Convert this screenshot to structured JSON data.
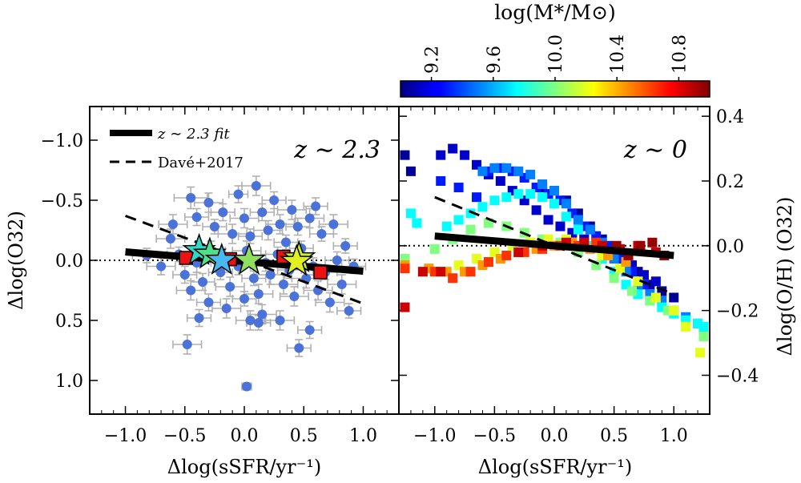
{
  "chart_data": [
    {
      "type": "scatter",
      "panel": "left",
      "annotation": "z ∼ 2.3",
      "xlabel": "Δlog(sSFR/yr⁻¹)",
      "ylabel": "Δlog(O32)",
      "xlim": [
        -1.3,
        1.3
      ],
      "ylim": [
        1.28,
        -1.28
      ],
      "y_inverted": true,
      "x_ticks": [
        "−1.0",
        "−0.5",
        "0.0",
        "0.5",
        "1.0"
      ],
      "x_tick_values": [
        -1.0,
        -0.5,
        0.0,
        0.5,
        1.0
      ],
      "y_ticks": [
        "−1.0",
        "−0.5",
        "0.0",
        "0.5",
        "1.0"
      ],
      "y_tick_values": [
        -1.0,
        -0.5,
        0.0,
        0.5,
        1.0
      ],
      "legend": [
        {
          "label": "z ∼ 2.3 fit",
          "style": "solid-thick"
        },
        {
          "label": "Davé+2017",
          "style": "dashed"
        }
      ],
      "reference_line": {
        "y": 0.0,
        "style": "dotted"
      },
      "fit_line": {
        "x": [
          -1.0,
          1.0
        ],
        "y": [
          -0.07,
          0.09
        ]
      },
      "dave_line": {
        "x": [
          -1.0,
          1.0
        ],
        "y": [
          -0.37,
          0.36
        ]
      },
      "points_color": "#4a72d8",
      "errorbar_color": "#b0b0b0",
      "points": [
        {
          "x": -0.45,
          "y": -0.52,
          "xe": 0.14,
          "ye": 0.09
        },
        {
          "x": -0.4,
          "y": -0.36,
          "xe": 0.1,
          "ye": 0.07
        },
        {
          "x": -0.3,
          "y": -0.48,
          "xe": 0.12,
          "ye": 0.08
        },
        {
          "x": -0.25,
          "y": -0.28,
          "xe": 0.1,
          "ye": 0.06
        },
        {
          "x": -0.18,
          "y": -0.4,
          "xe": 0.1,
          "ye": 0.07
        },
        {
          "x": -0.1,
          "y": -0.22,
          "xe": 0.12,
          "ye": 0.08
        },
        {
          "x": -0.05,
          "y": -0.55,
          "xe": 0.08,
          "ye": 0.07
        },
        {
          "x": 0.0,
          "y": -0.35,
          "xe": 0.12,
          "ye": 0.08
        },
        {
          "x": 0.05,
          "y": -0.2,
          "xe": 0.1,
          "ye": 0.06
        },
        {
          "x": 0.1,
          "y": -0.62,
          "xe": 0.12,
          "ye": 0.08
        },
        {
          "x": 0.15,
          "y": -0.4,
          "xe": 0.1,
          "ye": 0.07
        },
        {
          "x": 0.2,
          "y": -0.25,
          "xe": 0.12,
          "ye": 0.08
        },
        {
          "x": 0.25,
          "y": -0.5,
          "xe": 0.1,
          "ye": 0.07
        },
        {
          "x": 0.3,
          "y": -0.3,
          "xe": 0.12,
          "ye": 0.08
        },
        {
          "x": 0.35,
          "y": -0.15,
          "xe": 0.1,
          "ye": 0.06
        },
        {
          "x": 0.4,
          "y": -0.42,
          "xe": 0.12,
          "ye": 0.08
        },
        {
          "x": 0.45,
          "y": -0.28,
          "xe": 0.1,
          "ye": 0.07
        },
        {
          "x": 0.55,
          "y": -0.35,
          "xe": 0.12,
          "ye": 0.08
        },
        {
          "x": 0.65,
          "y": -0.22,
          "xe": 0.1,
          "ye": 0.06
        },
        {
          "x": 0.75,
          "y": -0.3,
          "xe": 0.12,
          "ye": 0.08
        },
        {
          "x": 0.85,
          "y": -0.12,
          "xe": 0.1,
          "ye": 0.06
        },
        {
          "x": -0.62,
          "y": -0.18,
          "xe": 0.12,
          "ye": 0.08
        },
        {
          "x": -0.55,
          "y": -0.05,
          "xe": 0.1,
          "ye": 0.06
        },
        {
          "x": -0.7,
          "y": 0.05,
          "xe": 0.12,
          "ye": 0.07
        },
        {
          "x": -0.5,
          "y": 0.12,
          "xe": 0.1,
          "ye": 0.07
        },
        {
          "x": -0.4,
          "y": 0.02,
          "xe": 0.12,
          "ye": 0.08
        },
        {
          "x": -0.35,
          "y": 0.18,
          "xe": 0.1,
          "ye": 0.07
        },
        {
          "x": -0.28,
          "y": -0.08,
          "xe": 0.12,
          "ye": 0.08
        },
        {
          "x": -0.2,
          "y": 0.1,
          "xe": 0.1,
          "ye": 0.06
        },
        {
          "x": -0.12,
          "y": 0.22,
          "xe": 0.12,
          "ye": 0.08
        },
        {
          "x": -0.05,
          "y": 0.05,
          "xe": 0.1,
          "ye": 0.07
        },
        {
          "x": 0.02,
          "y": -0.08,
          "xe": 0.12,
          "ye": 0.08
        },
        {
          "x": 0.08,
          "y": 0.15,
          "xe": 0.1,
          "ye": 0.06
        },
        {
          "x": 0.12,
          "y": 0.28,
          "xe": 0.12,
          "ye": 0.08
        },
        {
          "x": 0.18,
          "y": 0.02,
          "xe": 0.1,
          "ye": 0.07
        },
        {
          "x": 0.22,
          "y": 0.12,
          "xe": 0.12,
          "ye": 0.08
        },
        {
          "x": 0.28,
          "y": -0.05,
          "xe": 0.1,
          "ye": 0.06
        },
        {
          "x": 0.33,
          "y": 0.2,
          "xe": 0.12,
          "ye": 0.08
        },
        {
          "x": 0.38,
          "y": 0.08,
          "xe": 0.1,
          "ye": 0.07
        },
        {
          "x": 0.42,
          "y": 0.3,
          "xe": 0.12,
          "ye": 0.08
        },
        {
          "x": 0.48,
          "y": -0.1,
          "xe": 0.1,
          "ye": 0.06
        },
        {
          "x": 0.52,
          "y": 0.15,
          "xe": 0.12,
          "ye": 0.08
        },
        {
          "x": 0.58,
          "y": 0.05,
          "xe": 0.1,
          "ye": 0.07
        },
        {
          "x": 0.62,
          "y": 0.25,
          "xe": 0.12,
          "ye": 0.08
        },
        {
          "x": 0.68,
          "y": 0.1,
          "xe": 0.1,
          "ye": 0.06
        },
        {
          "x": 0.72,
          "y": 0.35,
          "xe": 0.12,
          "ye": 0.08
        },
        {
          "x": 0.78,
          "y": 0.0,
          "xe": 0.1,
          "ye": 0.07
        },
        {
          "x": 0.82,
          "y": 0.2,
          "xe": 0.12,
          "ye": 0.08
        },
        {
          "x": 0.88,
          "y": 0.42,
          "xe": 0.1,
          "ye": 0.06
        },
        {
          "x": -0.45,
          "y": 0.25,
          "xe": 0.12,
          "ye": 0.08
        },
        {
          "x": -0.3,
          "y": 0.35,
          "xe": 0.1,
          "ye": 0.07
        },
        {
          "x": -0.15,
          "y": 0.4,
          "xe": 0.12,
          "ye": 0.08
        },
        {
          "x": 0.0,
          "y": 0.32,
          "xe": 0.1,
          "ye": 0.06
        },
        {
          "x": 0.15,
          "y": 0.45,
          "xe": 0.12,
          "ye": 0.08
        },
        {
          "x": -0.38,
          "y": 0.48,
          "xe": 0.1,
          "ye": 0.07
        },
        {
          "x": 0.05,
          "y": 0.5,
          "xe": 0.12,
          "ye": 0.08
        },
        {
          "x": 0.12,
          "y": 0.52,
          "xe": 0.1,
          "ye": 0.06
        },
        {
          "x": 0.3,
          "y": 0.5,
          "xe": 0.12,
          "ye": 0.08
        },
        {
          "x": 0.55,
          "y": 0.58,
          "xe": 0.1,
          "ye": 0.07
        },
        {
          "x": -0.82,
          "y": -0.04,
          "xe": 0.12,
          "ye": 0.06
        },
        {
          "x": -0.48,
          "y": 0.7,
          "xe": 0.12,
          "ye": 0.08
        },
        {
          "x": 0.46,
          "y": 0.73,
          "xe": 0.1,
          "ye": 0.07
        },
        {
          "x": 0.02,
          "y": 1.05,
          "xe": 0.04,
          "ye": 0.03
        },
        {
          "x": 0.92,
          "y": 0.05,
          "xe": 0.1,
          "ye": 0.06
        },
        {
          "x": -0.6,
          "y": -0.3,
          "xe": 0.12,
          "ye": 0.08
        },
        {
          "x": 0.6,
          "y": -0.45,
          "xe": 0.1,
          "ye": 0.07
        }
      ],
      "red_squares": [
        {
          "x": -0.49,
          "y": -0.02
        },
        {
          "x": -0.12,
          "y": -0.01
        },
        {
          "x": 0.33,
          "y": -0.03
        },
        {
          "x": 0.64,
          "y": 0.1
        }
      ],
      "stars": [
        {
          "x": -0.38,
          "y": -0.08,
          "color": "#30d8c8"
        },
        {
          "x": -0.29,
          "y": -0.05,
          "color": "#4fe08a"
        },
        {
          "x": -0.19,
          "y": 0.0,
          "color": "#48b8f0"
        },
        {
          "x": 0.04,
          "y": 0.0,
          "color": "#90e060"
        },
        {
          "x": 0.46,
          "y": -0.02,
          "color": "#c8f030"
        },
        {
          "x": 0.44,
          "y": 0.01,
          "color": "#e0f020"
        }
      ]
    },
    {
      "type": "scatter",
      "panel": "right",
      "annotation": "z ∼ 0",
      "xlabel": "Δlog(sSFR/yr⁻¹)",
      "ylabel": "Δlog(O/H) (O32)",
      "xlim": [
        -1.3,
        1.3
      ],
      "ylim": [
        -0.52,
        0.43
      ],
      "x_ticks": [
        "−1.0",
        "−0.5",
        "0.0",
        "0.5",
        "1.0"
      ],
      "x_tick_values": [
        -1.0,
        -0.5,
        0.0,
        0.5,
        1.0
      ],
      "y_ticks": [
        "−0.4",
        "−0.2",
        "0.0",
        "0.2",
        "0.4"
      ],
      "y_tick_values": [
        -0.4,
        -0.2,
        0.0,
        0.2,
        0.4
      ],
      "reference_line": {
        "y": 0.0,
        "style": "dotted"
      },
      "fit_line": {
        "x": [
          -1.0,
          1.0
        ],
        "y": [
          0.03,
          -0.03
        ]
      },
      "dave_line": {
        "x": [
          -1.0,
          1.0
        ],
        "y": [
          0.15,
          -0.15
        ]
      },
      "colorbar": {
        "label": "log(M*/M⊙)",
        "range": [
          9.0,
          11.0
        ],
        "ticks": [
          "9.2",
          "9.6",
          "10.0",
          "10.4",
          "10.8"
        ],
        "tick_values": [
          9.2,
          9.6,
          10.0,
          10.4,
          10.8
        ]
      },
      "mass_bins": [
        {
          "mass": 9.05,
          "x": [
            -1.25,
            -1.2,
            -0.1,
            0.0,
            0.1,
            0.2,
            0.3,
            0.4,
            0.5,
            0.6,
            0.7,
            0.8,
            0.9,
            1.0
          ],
          "y": [
            0.28,
            0.23,
            0.18,
            0.17,
            0.14,
            0.1,
            0.06,
            0.02,
            -0.02,
            -0.05,
            -0.08,
            -0.12,
            -0.14,
            -0.16
          ]
        },
        {
          "mass": 9.15,
          "x": [
            -0.95,
            -0.85,
            -0.75,
            -0.65,
            -0.55,
            -0.45,
            -0.35,
            -0.25,
            -0.15,
            -0.05,
            0.05,
            0.15,
            0.25,
            0.35,
            0.45,
            0.55,
            0.65,
            0.75,
            0.85
          ],
          "y": [
            0.28,
            0.3,
            0.28,
            0.25,
            0.22,
            0.2,
            0.17,
            0.14,
            0.11,
            0.08,
            0.06,
            0.04,
            0.02,
            0.0,
            -0.02,
            -0.04,
            -0.06,
            -0.09,
            -0.11
          ]
        },
        {
          "mass": 9.3,
          "x": [
            -0.95,
            -0.8,
            -0.65,
            -0.55,
            -0.45,
            -0.35,
            -0.25,
            -0.15,
            -0.05,
            0.05,
            0.15,
            0.25,
            0.35,
            0.45,
            0.55,
            0.65,
            0.75
          ],
          "y": [
            0.2,
            0.18,
            0.15,
            0.23,
            0.24,
            0.23,
            0.21,
            0.18,
            0.16,
            0.14,
            0.1,
            0.06,
            0.03,
            0.0,
            -0.04,
            -0.08,
            -0.12
          ]
        },
        {
          "mass": 9.5,
          "x": [
            -0.6,
            -0.5,
            -0.4,
            -0.3,
            -0.2,
            -0.1,
            0.0,
            0.1,
            0.2,
            0.3,
            0.4,
            0.5,
            0.6,
            0.7,
            0.8,
            0.9,
            1.0,
            1.1,
            1.2,
            1.25
          ],
          "y": [
            0.23,
            0.24,
            0.24,
            0.23,
            0.22,
            0.19,
            0.17,
            0.13,
            0.08,
            0.05,
            0.01,
            -0.04,
            -0.08,
            -0.12,
            -0.15,
            -0.17,
            -0.2,
            -0.22,
            -0.24,
            -0.25
          ]
        },
        {
          "mass": 9.75,
          "x": [
            -1.2,
            -1.15,
            -0.9,
            -0.8,
            -0.7,
            -0.6,
            -0.5,
            -0.4,
            -0.3,
            -0.2,
            -0.1,
            0.0,
            0.1,
            0.2,
            0.3,
            0.4,
            0.5,
            0.6,
            0.7,
            0.8,
            0.9,
            1.0,
            1.1,
            1.2,
            1.25
          ],
          "y": [
            0.1,
            0.07,
            0.06,
            0.08,
            0.1,
            0.12,
            0.14,
            0.15,
            0.16,
            0.16,
            0.15,
            0.13,
            0.09,
            0.05,
            0.0,
            -0.04,
            -0.08,
            -0.12,
            -0.15,
            -0.17,
            -0.19,
            -0.21,
            -0.23,
            -0.24,
            -0.25
          ]
        },
        {
          "mass": 10.0,
          "x": [
            -1.25,
            -1.0,
            -0.85,
            -0.7,
            -0.55,
            -0.4,
            -0.25,
            -0.1,
            0.05,
            0.2,
            0.35,
            0.5,
            0.65,
            0.8,
            0.95,
            1.1,
            1.25
          ],
          "y": [
            -0.04,
            -0.01,
            0.02,
            0.05,
            0.07,
            0.06,
            0.04,
            0.02,
            0.01,
            -0.02,
            -0.06,
            -0.1,
            -0.14,
            -0.17,
            -0.2,
            -0.25,
            -0.28
          ]
        },
        {
          "mass": 10.2,
          "x": [
            -0.8,
            -0.65,
            -0.5,
            -0.35,
            -0.2,
            -0.05,
            0.1,
            0.25,
            0.4,
            0.55,
            0.7,
            0.85,
            1.0,
            1.1,
            1.22
          ],
          "y": [
            -0.06,
            -0.04,
            -0.02,
            0.0,
            0.01,
            0.02,
            0.02,
            0.0,
            -0.03,
            -0.07,
            -0.11,
            -0.16,
            -0.2,
            -0.25,
            -0.33
          ]
        },
        {
          "mass": 10.45,
          "x": [
            -1.25,
            -1.05,
            -0.9,
            -0.75,
            -0.6,
            -0.45,
            -0.3,
            -0.15,
            0.0,
            0.15,
            0.3,
            0.45,
            0.6
          ],
          "y": [
            -0.06,
            -0.07,
            -0.08,
            -0.08,
            -0.06,
            -0.04,
            -0.02,
            -0.01,
            0.0,
            0.01,
            -0.01,
            -0.03,
            -0.05
          ]
        },
        {
          "mass": 10.65,
          "x": [
            -1.25,
            -1.0,
            -0.85,
            -0.7,
            -0.55,
            -0.4,
            -0.25,
            -0.1,
            0.05,
            0.2,
            0.35
          ],
          "y": [
            -0.07,
            -0.08,
            -0.1,
            -0.08,
            -0.05,
            -0.03,
            -0.02,
            -0.01,
            0.0,
            0.0,
            0.01
          ]
        },
        {
          "mass": 10.85,
          "x": [
            -1.25,
            -1.1,
            -0.95,
            -0.3,
            -0.1,
            0.1,
            0.25,
            0.4,
            0.55,
            0.7,
            0.85
          ],
          "y": [
            -0.19,
            -0.08,
            -0.08,
            -0.02,
            0.0,
            0.01,
            0.01,
            0.0,
            -0.01,
            0.0,
            -0.02
          ]
        },
        {
          "mass": 10.95,
          "x": [
            0.52,
            0.62,
            0.72,
            0.82,
            0.92
          ],
          "y": [
            0.0,
            -0.03,
            0.0,
            0.01,
            -0.03
          ]
        }
      ]
    }
  ]
}
